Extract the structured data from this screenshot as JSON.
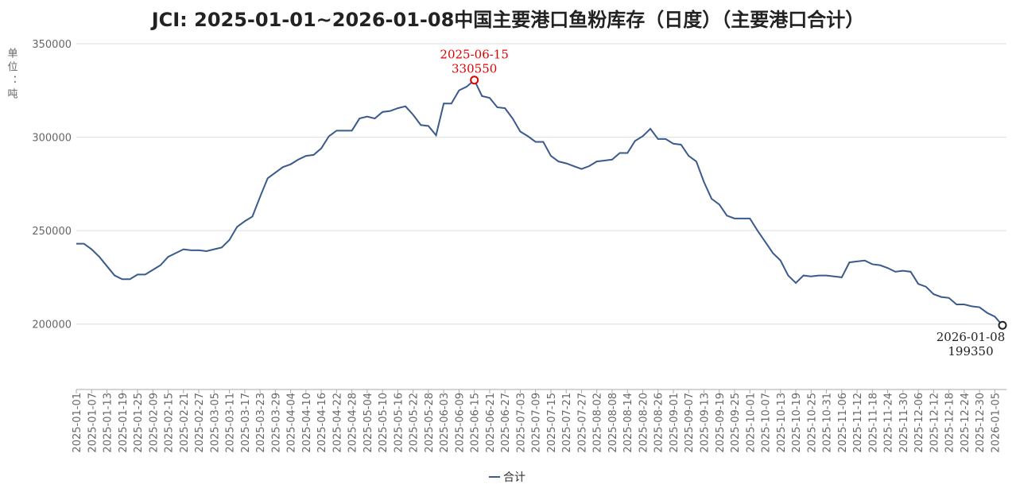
{
  "chart_data": {
    "type": "line",
    "title": "JCI: 2025-01-01~2026-01-08中国主要港口鱼粉库存（日度）（主要港口合计）",
    "y_label": "单位：吨",
    "categories": [
      "2025-01-01",
      null,
      "2025-01-07",
      null,
      "2025-01-13",
      null,
      "2025-01-19",
      null,
      "2025-01-25",
      null,
      "2025-02-09",
      null,
      "2025-02-15",
      null,
      "2025-02-21",
      null,
      "2025-02-27",
      null,
      "2025-03-05",
      null,
      "2025-03-11",
      null,
      "2025-03-17",
      null,
      "2025-03-23",
      null,
      "2025-03-29",
      null,
      "2025-04-04",
      null,
      "2025-04-10",
      null,
      "2025-04-16",
      null,
      "2025-04-22",
      null,
      "2025-04-28",
      null,
      "2025-05-04",
      null,
      "2025-05-10",
      null,
      "2025-05-16",
      null,
      "2025-05-22",
      null,
      "2025-05-28",
      null,
      "2025-06-03",
      null,
      "2025-06-09",
      null,
      "2025-06-15",
      null,
      "2025-06-21",
      null,
      "2025-06-27",
      null,
      "2025-07-03",
      null,
      "2025-07-09",
      null,
      "2025-07-15",
      null,
      "2025-07-21",
      null,
      "2025-07-27",
      null,
      "2025-08-02",
      null,
      "2025-08-08",
      null,
      "2025-08-14",
      null,
      "2025-08-20",
      null,
      "2025-08-26",
      null,
      "2025-09-01",
      null,
      "2025-09-07",
      null,
      "2025-09-13",
      null,
      "2025-09-19",
      null,
      "2025-09-25",
      null,
      "2025-10-01",
      null,
      "2025-10-07",
      null,
      "2025-10-13",
      null,
      "2025-10-19",
      null,
      "2025-10-25",
      null,
      "2025-10-31",
      null,
      "2025-11-06",
      null,
      "2025-11-12",
      null,
      "2025-11-18",
      null,
      "2025-11-24",
      null,
      "2025-11-30",
      null,
      "2025-12-06",
      null,
      "2025-12-12",
      null,
      "2025-12-18",
      null,
      "2025-12-24",
      null,
      "2025-12-30",
      null,
      "2026-01-05",
      null
    ],
    "series": [
      {
        "name": "合计",
        "color": "#3a5a8c",
        "values": [
          243000,
          243000,
          240000,
          236000,
          231000,
          226000,
          224000,
          224000,
          226500,
          226500,
          229000,
          231500,
          236000,
          238000,
          240000,
          239500,
          239500,
          239000,
          240000,
          241000,
          245000,
          252000,
          255000,
          257500,
          268000,
          278000,
          281000,
          284000,
          285500,
          288000,
          290000,
          290500,
          294000,
          300500,
          303500,
          303500,
          303500,
          310000,
          311000,
          310000,
          313500,
          314000,
          315500,
          316500,
          312000,
          306500,
          306000,
          301000,
          318000,
          318000,
          325000,
          327000,
          330550,
          322000,
          321000,
          316000,
          315500,
          310000,
          303000,
          300500,
          297500,
          297500,
          290000,
          287000,
          286000,
          284500,
          283000,
          284500,
          287000,
          287500,
          288000,
          291500,
          291500,
          298000,
          300500,
          304500,
          299000,
          299000,
          296500,
          296000,
          290000,
          287000,
          276000,
          267000,
          264000,
          258000,
          256500,
          256500,
          256500,
          250000,
          244000,
          238000,
          234000,
          226000,
          222000,
          226000,
          225500,
          226000,
          226000,
          225500,
          225000,
          233000,
          233500,
          234000,
          232000,
          231500,
          230000,
          228000,
          228500,
          228000,
          221500,
          220000,
          216000,
          214500,
          214000,
          210500,
          210500,
          209500,
          209000,
          206000,
          204000,
          199350
        ]
      }
    ],
    "annotations": [
      {
        "date": "2025-06-15",
        "value": 330550,
        "color": "#e00000"
      },
      {
        "date": "2026-01-08",
        "value": 199350,
        "color": "#222222"
      }
    ],
    "ylim": [
      165000,
      350000
    ],
    "yticks": [
      200000,
      250000,
      300000,
      350000
    ],
    "grid": true,
    "legend": "bottom"
  }
}
